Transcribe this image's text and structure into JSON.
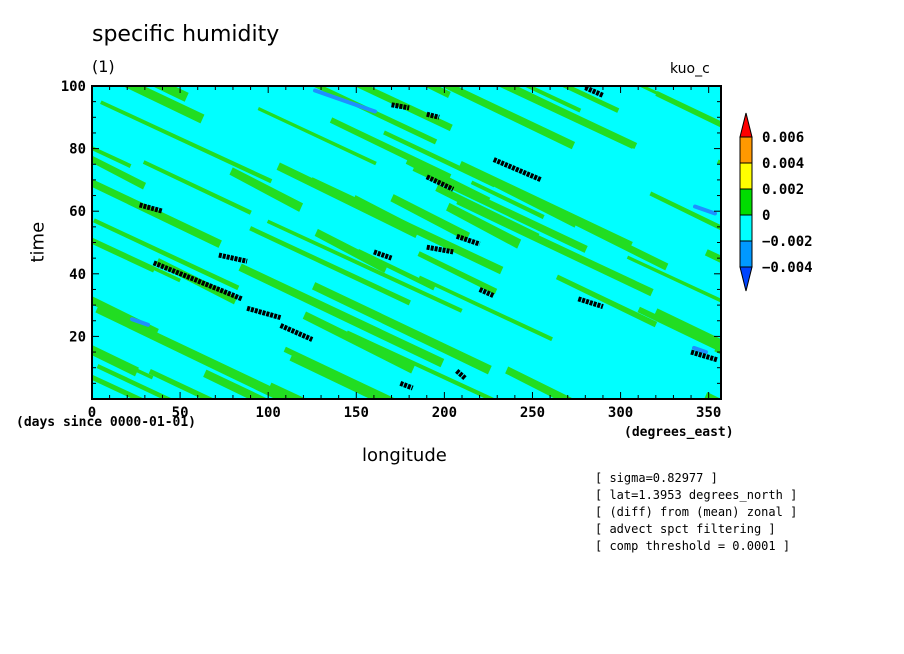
{
  "chart_data": {
    "type": "heatmap",
    "title": "specific humidity",
    "units": "(1)",
    "case_label": "kuo_c",
    "xlabel": "longitude",
    "xunits": "(degrees_east)",
    "ylabel": "time",
    "yunits": "(days since 0000-01-01)",
    "xlim": [
      0,
      357
    ],
    "ylim": [
      0,
      100
    ],
    "xticks": [
      0,
      50,
      100,
      150,
      200,
      250,
      300,
      350
    ],
    "yticks": [
      20,
      40,
      60,
      80,
      100
    ],
    "colorbar": {
      "levels": [
        "0.006",
        "0.004",
        "0.002",
        "0",
        "−0.002",
        "−0.004"
      ],
      "colors": [
        "#ff0000",
        "#ff9900",
        "#ffff00",
        "#00dd00",
        "#00ffff",
        "#0099ff",
        "#0044ff"
      ]
    },
    "field_colors": {
      "positive": "#22dd22",
      "negative": "#00ffff",
      "strong_negative": "#1e90ff",
      "threshold_marks": "#000000"
    },
    "threshold_marks": [
      {
        "x": [
          27,
          40
        ],
        "y": [
          62,
          60
        ]
      },
      {
        "x": [
          35,
          85
        ],
        "y": [
          43.5,
          32
        ]
      },
      {
        "x": [
          72,
          88
        ],
        "y": [
          46,
          44
        ]
      },
      {
        "x": [
          88,
          107
        ],
        "y": [
          29,
          26
        ]
      },
      {
        "x": [
          107,
          125
        ],
        "y": [
          23.5,
          19
        ]
      },
      {
        "x": [
          160,
          170
        ],
        "y": [
          47,
          45
        ]
      },
      {
        "x": [
          170,
          180
        ],
        "y": [
          94,
          93
        ]
      },
      {
        "x": [
          175,
          182
        ],
        "y": [
          5,
          3.5
        ]
      },
      {
        "x": [
          190,
          205
        ],
        "y": [
          71,
          67
        ]
      },
      {
        "x": [
          190,
          205
        ],
        "y": [
          48.5,
          47
        ]
      },
      {
        "x": [
          190,
          197
        ],
        "y": [
          91,
          90
        ]
      },
      {
        "x": [
          207,
          212
        ],
        "y": [
          9,
          6.5
        ]
      },
      {
        "x": [
          207,
          220
        ],
        "y": [
          52,
          49.5
        ]
      },
      {
        "x": [
          220,
          228
        ],
        "y": [
          35,
          33
        ]
      },
      {
        "x": [
          228,
          255
        ],
        "y": [
          76.5,
          70
        ]
      },
      {
        "x": [
          276,
          290
        ],
        "y": [
          32,
          29.5
        ]
      },
      {
        "x": [
          280,
          290
        ],
        "y": [
          99.5,
          97
        ]
      },
      {
        "x": [
          340,
          355
        ],
        "y": [
          15,
          12.5
        ]
      }
    ]
  },
  "annotations": [
    "[ sigma=0.82977 ]",
    "[ lat=1.3953 degrees_north ]",
    "[ (diff) from (mean) zonal ]",
    "[ advect spct filtering ]",
    "[ comp threshold = 0.0001 ]"
  ]
}
